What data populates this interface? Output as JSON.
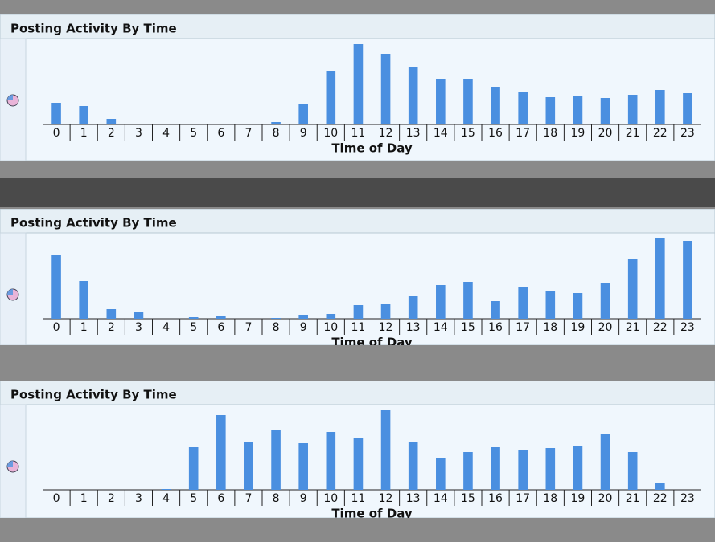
{
  "chart_data": [
    {
      "type": "bar",
      "title": "Posting Activity By Time",
      "xlabel": "Time of Day",
      "color": "#4a8fe0",
      "categories": [
        "0",
        "1",
        "2",
        "3",
        "4",
        "5",
        "6",
        "7",
        "8",
        "9",
        "10",
        "11",
        "12",
        "13",
        "14",
        "15",
        "16",
        "17",
        "18",
        "19",
        "20",
        "21",
        "22",
        "23"
      ],
      "values": [
        27,
        23,
        7,
        1,
        1,
        1,
        0,
        1,
        3,
        25,
        67,
        100,
        88,
        72,
        57,
        56,
        47,
        41,
        34,
        36,
        33,
        37,
        43,
        39
      ],
      "ylim": [
        0,
        100
      ]
    },
    {
      "type": "bar",
      "title": "Posting Activity By Time",
      "xlabel": "Time of Day",
      "color": "#4a8fe0",
      "categories": [
        "0",
        "1",
        "2",
        "3",
        "4",
        "5",
        "6",
        "7",
        "8",
        "9",
        "10",
        "11",
        "12",
        "13",
        "14",
        "15",
        "16",
        "17",
        "18",
        "19",
        "20",
        "21",
        "22",
        "23"
      ],
      "values": [
        80,
        47,
        12,
        8,
        0,
        2,
        3,
        0,
        1,
        5,
        6,
        17,
        19,
        28,
        42,
        46,
        22,
        40,
        34,
        32,
        45,
        74,
        100,
        97
      ],
      "ylim": [
        0,
        100
      ]
    },
    {
      "type": "bar",
      "title": "Posting Activity By Time",
      "xlabel": "Time of Day",
      "color": "#4a8fe0",
      "categories": [
        "0",
        "1",
        "2",
        "3",
        "4",
        "5",
        "6",
        "7",
        "8",
        "9",
        "10",
        "11",
        "12",
        "13",
        "14",
        "15",
        "16",
        "17",
        "18",
        "19",
        "20",
        "21",
        "22",
        "23"
      ],
      "values": [
        0,
        0,
        0,
        0,
        1,
        53,
        93,
        60,
        74,
        58,
        72,
        65,
        100,
        60,
        40,
        47,
        53,
        49,
        52,
        54,
        70,
        47,
        9,
        0
      ],
      "ylim": [
        0,
        100
      ]
    }
  ]
}
